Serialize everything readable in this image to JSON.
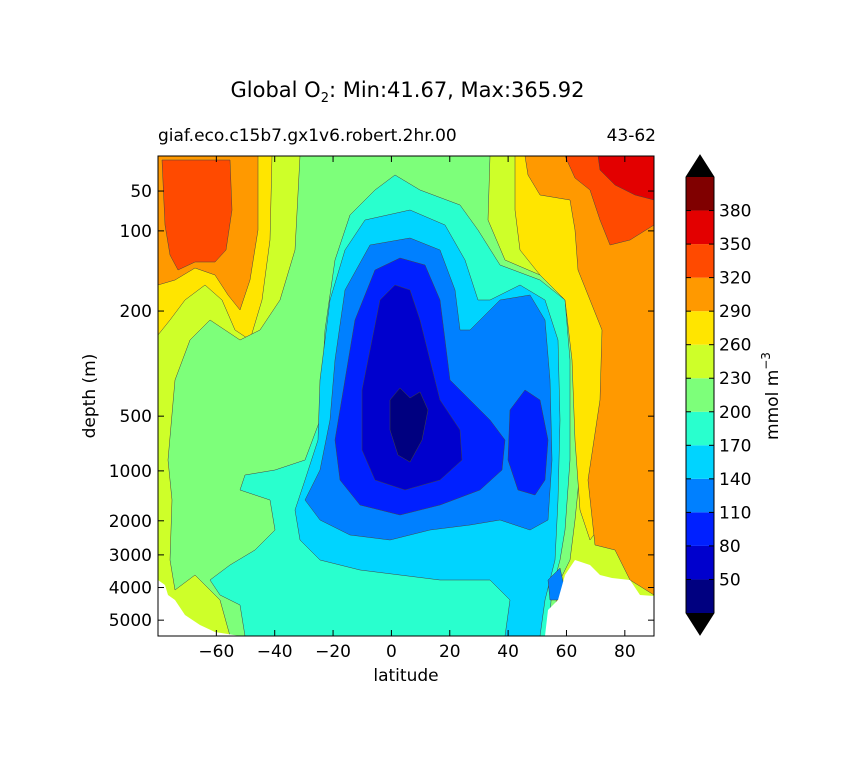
{
  "chart_data": {
    "type": "heatmap",
    "plot_kind": "filled contour",
    "title_prefix": "Global O",
    "title_subscript": "2",
    "title_suffix": ": Min:41.67, Max:365.92",
    "subtitle_left": "giaf.eco.c15b7.gx1v6.robert.2hr.00",
    "subtitle_right": "43-62",
    "xlabel": "latitude",
    "ylabel": "depth (m)",
    "xlim": [
      -80,
      90
    ],
    "x_ticks": [
      -60,
      -40,
      -20,
      0,
      20,
      40,
      60,
      80
    ],
    "x_tick_labels": [
      "−60",
      "−40",
      "−20",
      "0",
      "20",
      "40",
      "60",
      "80"
    ],
    "ylim": [
      5500,
      0
    ],
    "y_scale": "nonlinear depth (stretched near surface)",
    "y_ticks": [
      50,
      100,
      200,
      500,
      1000,
      2000,
      3000,
      4000,
      5000
    ],
    "colorbar": {
      "label": "mmol m",
      "label_exponent": "−3",
      "levels": [
        20,
        50,
        80,
        110,
        140,
        170,
        200,
        230,
        260,
        290,
        320,
        350,
        380,
        410
      ],
      "tick_labels": [
        "50",
        "80",
        "110",
        "140",
        "170",
        "200",
        "230",
        "260",
        "290",
        "320",
        "350",
        "380"
      ],
      "colors": [
        "#000080",
        "#0000cd",
        "#0020ff",
        "#0080ff",
        "#00d4ff",
        "#29ffce",
        "#7dff7a",
        "#ceff29",
        "#ffe500",
        "#ff9900",
        "#ff4a00",
        "#e30000",
        "#800000"
      ],
      "extend": "both",
      "extend_color": "#000000"
    }
  }
}
